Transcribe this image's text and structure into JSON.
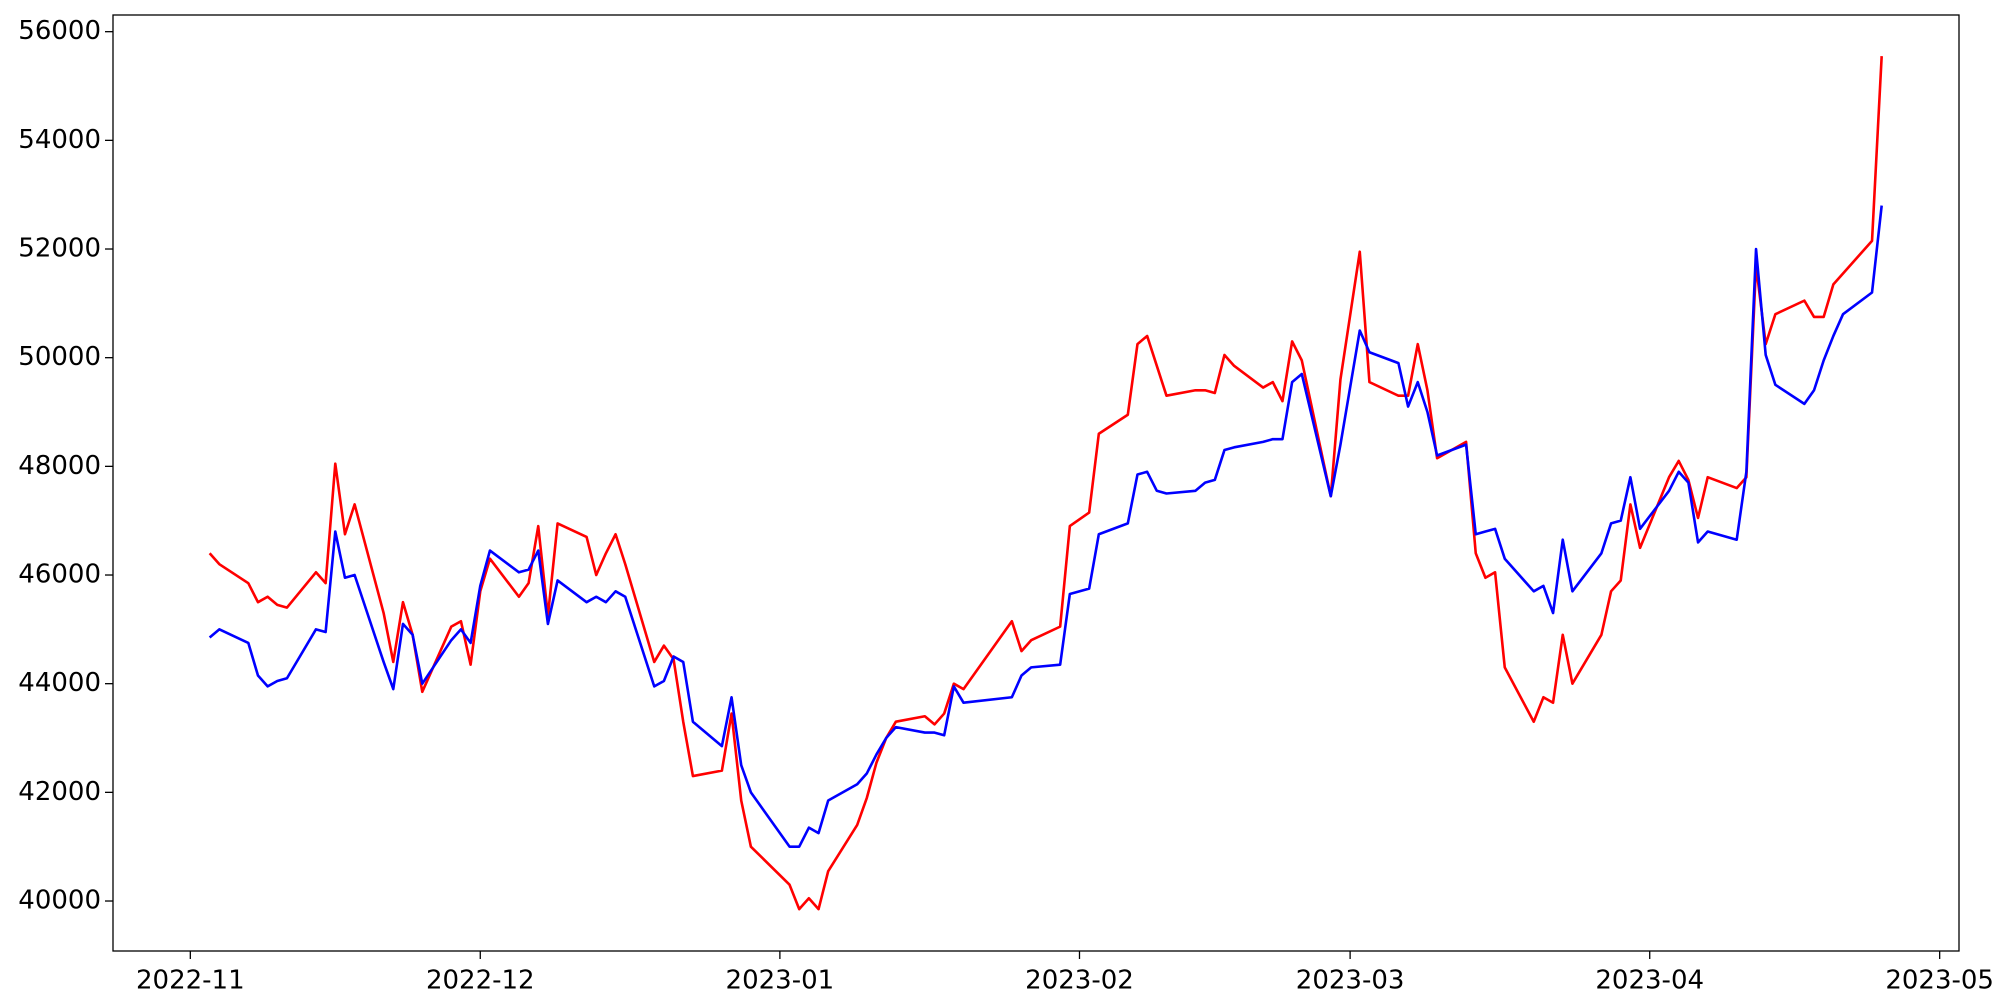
{
  "chart_data": {
    "type": "line",
    "x": [
      "2022-11-03",
      "2022-11-04",
      "2022-11-07",
      "2022-11-08",
      "2022-11-09",
      "2022-11-10",
      "2022-11-11",
      "2022-11-14",
      "2022-11-15",
      "2022-11-16",
      "2022-11-17",
      "2022-11-18",
      "2022-11-21",
      "2022-11-22",
      "2022-11-23",
      "2022-11-24",
      "2022-11-25",
      "2022-11-28",
      "2022-11-29",
      "2022-11-30",
      "2022-12-01",
      "2022-12-02",
      "2022-12-05",
      "2022-12-06",
      "2022-12-07",
      "2022-12-08",
      "2022-12-09",
      "2022-12-12",
      "2022-12-13",
      "2022-12-14",
      "2022-12-15",
      "2022-12-16",
      "2022-12-19",
      "2022-12-20",
      "2022-12-21",
      "2022-12-22",
      "2022-12-23",
      "2022-12-26",
      "2022-12-27",
      "2022-12-28",
      "2022-12-29",
      "2023-01-02",
      "2023-01-03",
      "2023-01-04",
      "2023-01-05",
      "2023-01-06",
      "2023-01-09",
      "2023-01-10",
      "2023-01-11",
      "2023-01-12",
      "2023-01-13",
      "2023-01-16",
      "2023-01-17",
      "2023-01-18",
      "2023-01-19",
      "2023-01-20",
      "2023-01-25",
      "2023-01-26",
      "2023-01-27",
      "2023-01-30",
      "2023-01-31",
      "2023-02-02",
      "2023-02-03",
      "2023-02-06",
      "2023-02-07",
      "2023-02-08",
      "2023-02-09",
      "2023-02-10",
      "2023-02-13",
      "2023-02-14",
      "2023-02-15",
      "2023-02-16",
      "2023-02-17",
      "2023-02-20",
      "2023-02-21",
      "2023-02-22",
      "2023-02-23",
      "2023-02-24",
      "2023-02-27",
      "2023-02-28",
      "2023-03-02",
      "2023-03-03",
      "2023-03-06",
      "2023-03-07",
      "2023-03-08",
      "2023-03-09",
      "2023-03-10",
      "2023-03-13",
      "2023-03-14",
      "2023-03-15",
      "2023-03-16",
      "2023-03-17",
      "2023-03-20",
      "2023-03-21",
      "2023-03-22",
      "2023-03-23",
      "2023-03-24",
      "2023-03-27",
      "2023-03-28",
      "2023-03-29",
      "2023-03-30",
      "2023-03-31",
      "2023-04-03",
      "2023-04-04",
      "2023-04-05",
      "2023-04-06",
      "2023-04-07",
      "2023-04-10",
      "2023-04-11",
      "2023-04-12",
      "2023-04-13",
      "2023-04-14",
      "2023-04-17",
      "2023-04-18",
      "2023-04-19",
      "2023-04-20",
      "2023-04-21",
      "2023-04-24",
      "2023-04-25"
    ],
    "series": [
      {
        "color": "#ff0000",
        "values": [
          46400,
          46200,
          45850,
          45500,
          45600,
          45450,
          45400,
          46050,
          45850,
          48050,
          46750,
          47300,
          45300,
          44400,
          45500,
          44900,
          43850,
          45050,
          45150,
          44350,
          45700,
          46300,
          45600,
          45850,
          46900,
          45250,
          46950,
          46700,
          46000,
          46400,
          46750,
          46200,
          44400,
          44700,
          44450,
          43300,
          42300,
          42400,
          43450,
          41850,
          41000,
          40300,
          39850,
          40050,
          39850,
          40550,
          41400,
          41900,
          42550,
          43000,
          43300,
          43400,
          43250,
          43450,
          44000,
          43900,
          45150,
          44600,
          44800,
          45050,
          46900,
          47150,
          48600,
          48950,
          50250,
          50400,
          49850,
          49300,
          49400,
          49400,
          49350,
          50050,
          49850,
          49450,
          49550,
          49200,
          50300,
          49950,
          47450,
          49600,
          51950,
          49550,
          49300,
          49300,
          50250,
          49400,
          48150,
          48450,
          46400,
          45950,
          46050,
          44300,
          43300,
          43750,
          43650,
          44900,
          44000,
          44900,
          45700,
          45900,
          47300,
          46500,
          47800,
          48100,
          47750,
          47050,
          47800,
          47600,
          47800,
          51700,
          50250,
          50800,
          51050,
          50750,
          50750,
          51350,
          51550,
          52150,
          55550
        ]
      },
      {
        "color": "#0000ff",
        "values": [
          44850,
          45000,
          44750,
          44150,
          43950,
          44050,
          44100,
          45000,
          44950,
          46800,
          45950,
          46000,
          44400,
          43900,
          45100,
          44900,
          44000,
          44800,
          45000,
          44750,
          45800,
          46450,
          46050,
          46100,
          46450,
          45100,
          45900,
          45500,
          45600,
          45500,
          45700,
          45600,
          43950,
          44050,
          44500,
          44400,
          43300,
          42850,
          43750,
          42500,
          42000,
          41000,
          41000,
          41350,
          41250,
          41850,
          42150,
          42350,
          42700,
          43000,
          43200,
          43100,
          43100,
          43050,
          43950,
          43650,
          43750,
          44150,
          44300,
          44350,
          45650,
          45750,
          46750,
          46950,
          47850,
          47900,
          47550,
          47500,
          47550,
          47700,
          47750,
          48300,
          48350,
          48450,
          48500,
          48500,
          49550,
          49700,
          47450,
          48400,
          50500,
          50100,
          49900,
          49100,
          49550,
          49000,
          48200,
          48400,
          46750,
          46800,
          46850,
          46300,
          45700,
          45800,
          45300,
          46650,
          45700,
          46400,
          46950,
          47000,
          47800,
          46850,
          47550,
          47900,
          47700,
          46600,
          46800,
          46650,
          47900,
          52000,
          50050,
          49500,
          49150,
          49400,
          49950,
          50400,
          50800,
          51200,
          52800
        ]
      }
    ],
    "xlim": [
      "2022-10-24",
      "2023-05-03"
    ],
    "xticks": [
      {
        "value": "2022-11-01",
        "label": "2022-11"
      },
      {
        "value": "2022-12-01",
        "label": "2022-12"
      },
      {
        "value": "2023-01-01",
        "label": "2023-01"
      },
      {
        "value": "2023-02-01",
        "label": "2023-02"
      },
      {
        "value": "2023-03-01",
        "label": "2023-03"
      },
      {
        "value": "2023-04-01",
        "label": "2023-04"
      },
      {
        "value": "2023-05-01",
        "label": "2023-05"
      }
    ],
    "ylim": [
      39080,
      56307
    ],
    "yticks": [
      40000,
      42000,
      44000,
      46000,
      48000,
      50000,
      52000,
      54000,
      56000
    ]
  }
}
